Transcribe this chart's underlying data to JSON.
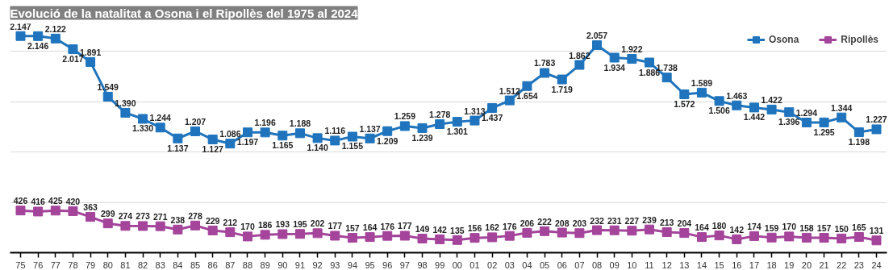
{
  "chart_data": {
    "type": "line",
    "title": "Evolució de la natalitat a Osona i el Ripollès del 1975 al 2024",
    "categories": [
      "75",
      "76",
      "77",
      "78",
      "79",
      "80",
      "81",
      "82",
      "83",
      "84",
      "85",
      "86",
      "87",
      "88",
      "89",
      "90",
      "91",
      "92",
      "93",
      "94",
      "95",
      "96",
      "97",
      "98",
      "99",
      "00",
      "01",
      "02",
      "03",
      "04",
      "05",
      "06",
      "07",
      "08",
      "09",
      "10",
      "11",
      "12",
      "13",
      "14",
      "15",
      "16",
      "17",
      "18",
      "19",
      "20",
      "21",
      "22",
      "23",
      "24"
    ],
    "series": [
      {
        "name": "Osona",
        "color": "#1f74bd",
        "values": [
          2147,
          2146,
          2122,
          2017,
          1891,
          1549,
          1390,
          1330,
          1244,
          1137,
          1207,
          1127,
          1086,
          1197,
          1196,
          1165,
          1188,
          1140,
          1116,
          1155,
          1137,
          1209,
          1259,
          1239,
          1278,
          1301,
          1313,
          1437,
          1512,
          1654,
          1783,
          1719,
          1862,
          2057,
          1934,
          1922,
          1886,
          1738,
          1572,
          1589,
          1506,
          1463,
          1442,
          1422,
          1396,
          1294,
          1295,
          1344,
          1198,
          1227
        ],
        "value_labels": [
          "2.147",
          "2.146",
          "2.122",
          "2.017",
          "1.891",
          "1.549",
          "1.390",
          "1.330",
          "1.244",
          "1.137",
          "1.207",
          "1.127",
          "1.086",
          "1.197",
          "1.196",
          "1.165",
          "1.188",
          "1.140",
          "1.116",
          "1.155",
          "1.137",
          "1.209",
          "1.259",
          "1.239",
          "1.278",
          "1.301",
          "1.313",
          "1.437",
          "1.512",
          "1.654",
          "1.783",
          "1.719",
          "1.862",
          "2.057",
          "1.934",
          "1.922",
          "1.886",
          "1.738",
          "1.572",
          "1.589",
          "1.506",
          "1.463",
          "1.442",
          "1.422",
          "1.396",
          "1.294",
          "1.295",
          "1.344",
          "1.198",
          "1.227"
        ]
      },
      {
        "name": "Ripollès",
        "color": "#a4449a",
        "values": [
          426,
          416,
          425,
          420,
          363,
          299,
          274,
          273,
          271,
          238,
          278,
          229,
          212,
          170,
          186,
          193,
          195,
          202,
          177,
          157,
          164,
          176,
          177,
          149,
          142,
          135,
          156,
          162,
          176,
          206,
          222,
          208,
          203,
          232,
          231,
          227,
          239,
          213,
          204,
          164,
          180,
          142,
          174,
          159,
          170,
          158,
          157,
          150,
          165,
          131
        ],
        "value_labels": [
          "426",
          "416",
          "425",
          "420",
          "363",
          "299",
          "274",
          "273",
          "271",
          "238",
          "278",
          "229",
          "212",
          "170",
          "186",
          "193",
          "195",
          "202",
          "177",
          "157",
          "164",
          "176",
          "177",
          "149",
          "142",
          "135",
          "156",
          "162",
          "176",
          "206",
          "222",
          "208",
          "203",
          "232",
          "231",
          "227",
          "239",
          "213",
          "204",
          "164",
          "180",
          "142",
          "174",
          "159",
          "170",
          "158",
          "157",
          "150",
          "165",
          "131"
        ]
      }
    ],
    "yticks": [
      {
        "value": 500,
        "label": null
      },
      {
        "value": 1000,
        "label": null
      },
      {
        "value": 1500,
        "label": null
      },
      {
        "value": 2000,
        "label": null
      }
    ],
    "tick_labels": "x",
    "grid": "y",
    "legend": "top right",
    "marker": "square",
    "line_style": "solid"
  }
}
